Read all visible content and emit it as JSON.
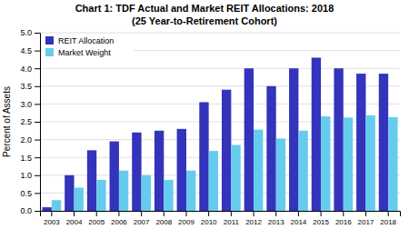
{
  "chart_data": {
    "type": "bar",
    "title": "Chart 1: TDF Actual and Market REIT Allocations: 2018",
    "subtitle": "(25 Year-to-Retirement Cohort)",
    "y_label": "Percent of Assets",
    "categories": [
      "2003",
      "2004",
      "2005",
      "2006",
      "2007",
      "2008",
      "2009",
      "2010",
      "2011",
      "2012",
      "2013",
      "2014",
      "2015",
      "2016",
      "2017",
      "2018"
    ],
    "series": [
      {
        "name": "REIT Allocation",
        "color": "#3333BB",
        "values": [
          0.1,
          1.0,
          1.7,
          1.95,
          2.2,
          2.25,
          2.3,
          3.05,
          3.4,
          4.0,
          3.5,
          4.0,
          4.3,
          4.0,
          3.85,
          3.85
        ]
      },
      {
        "name": "Market Weight",
        "color": "#66CCEE",
        "values": [
          0.3,
          0.65,
          0.87,
          1.13,
          1.0,
          0.87,
          1.13,
          1.68,
          1.85,
          2.28,
          2.03,
          2.25,
          2.65,
          2.62,
          2.68,
          2.63
        ]
      }
    ],
    "ylim": [
      0,
      5.0
    ],
    "yticks": [
      {
        "value": 0.0,
        "label": "0.0"
      },
      0.5,
      {
        "value": 1.0,
        "label": "1.0"
      },
      1.5,
      {
        "value": 2.0,
        "label": "2.0"
      },
      2.5,
      {
        "value": 3.0,
        "label": "3.0"
      },
      3.5,
      {
        "value": 4.0,
        "label": "4.0"
      },
      4.5,
      {
        "value": 5.0,
        "label": "5.0"
      }
    ],
    "grid": true,
    "legend": "upper left"
  }
}
